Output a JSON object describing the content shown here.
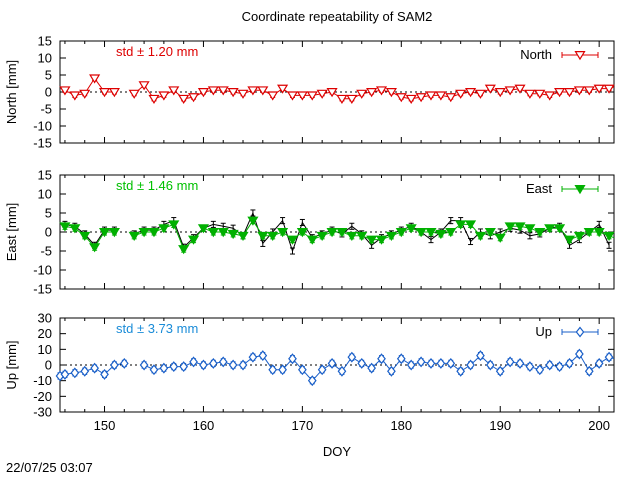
{
  "chart_data": {
    "type": "line",
    "title": "Coordinate repeatability of SAM2",
    "xlabel": "DOY",
    "xlim": [
      145.5,
      201.5
    ],
    "xticks": [
      150,
      160,
      170,
      180,
      190,
      200
    ],
    "timestamp": "22/07/25 03:07",
    "panels": [
      {
        "key": "north",
        "ylabel": "North [mm]",
        "ylim": [
          -15,
          15
        ],
        "yticks": [
          -15,
          -10,
          -5,
          0,
          5,
          10,
          15
        ],
        "std_label": "std ± 1.20 mm",
        "std_color": "#dd0000",
        "legend": "North",
        "color": "#dd0000",
        "marker": "triangle-down-open",
        "errbar": 0.6,
        "x": [
          146,
          147,
          148,
          149,
          150,
          151,
          152,
          153,
          154,
          155,
          156,
          157,
          158,
          159,
          160,
          161,
          162,
          163,
          164,
          165,
          166,
          167,
          168,
          169,
          170,
          171,
          172,
          173,
          174,
          175,
          176,
          177,
          178,
          179,
          180,
          181,
          182,
          183,
          184,
          185,
          186,
          187,
          188,
          189,
          190,
          191,
          192,
          193,
          194,
          195,
          196,
          197,
          198,
          199,
          200,
          201,
          202
        ],
        "y": [
          0.5,
          -1,
          -0.5,
          4,
          0,
          0,
          null,
          -0.5,
          2,
          -2,
          -1,
          0.5,
          -2,
          -1.5,
          0,
          0.5,
          0.5,
          0,
          -0.5,
          0.5,
          0.5,
          -1,
          1,
          -1,
          -1,
          -1,
          -0.5,
          0,
          -2,
          -2,
          -0.5,
          0,
          0.5,
          0,
          -1.5,
          -2,
          -1.5,
          -1,
          -1,
          -1.5,
          -0.5,
          0,
          -0.5,
          1,
          0,
          0.5,
          1,
          -0.5,
          -0.5,
          -1,
          0,
          0,
          0.5,
          0.5,
          1,
          1,
          1.5
        ],
        "y2": null
      },
      {
        "key": "east",
        "ylabel": "East [mm]",
        "ylim": [
          -15,
          15
        ],
        "yticks": [
          -15,
          -10,
          -5,
          0,
          5,
          10,
          15
        ],
        "std_label": "std ± 1.46 mm",
        "std_color": "#00c000",
        "legend": "East",
        "color": "#00b000",
        "marker": "triangle-down-filled",
        "errbar": 0.8,
        "x": [
          146,
          147,
          148,
          149,
          150,
          151,
          152,
          153,
          154,
          155,
          156,
          157,
          158,
          159,
          160,
          161,
          162,
          163,
          164,
          165,
          166,
          167,
          168,
          169,
          170,
          171,
          172,
          173,
          174,
          175,
          176,
          177,
          178,
          179,
          180,
          181,
          182,
          183,
          184,
          185,
          186,
          187,
          188,
          189,
          190,
          191,
          192,
          193,
          194,
          195,
          196,
          197,
          198,
          199,
          200,
          201,
          202
        ],
        "y": [
          1.5,
          1,
          -1,
          -4,
          0,
          0,
          null,
          -1,
          0,
          0,
          1,
          2,
          -4.5,
          -2,
          1,
          0,
          0,
          -0.5,
          -1,
          3,
          -1,
          -1,
          0,
          -2,
          0,
          -2,
          -1,
          0,
          0,
          -1,
          -1,
          -2,
          -2,
          -1,
          0,
          1,
          0,
          0,
          -0.5,
          0,
          2,
          2,
          -1,
          0,
          -1.5,
          1.5,
          1.5,
          1,
          0,
          1,
          1,
          -2,
          -1,
          0,
          0,
          -1,
          -1.5
        ],
        "y2": [
          2,
          1.5,
          -0.5,
          -3.5,
          0.5,
          0.5,
          null,
          -0.5,
          0.5,
          0.5,
          2,
          3,
          -4,
          -1.5,
          1,
          2,
          1.5,
          1,
          -1,
          5,
          -3,
          0,
          3,
          -5,
          2.5,
          -1.5,
          -0.5,
          0.5,
          -0.5,
          1.5,
          -0.5,
          -3.5,
          -1.5,
          -0.5,
          0.5,
          1.5,
          0,
          -2,
          0,
          3,
          3,
          -2.5,
          0,
          -1,
          0,
          1,
          0.5,
          -1,
          -0.5,
          1,
          1.5,
          -3.5,
          -2,
          0,
          2,
          -3.5,
          -3
        ]
      },
      {
        "key": "up",
        "ylabel": "Up [mm]",
        "ylim": [
          -30,
          30
        ],
        "yticks": [
          -30,
          -20,
          -10,
          0,
          10,
          20,
          30
        ],
        "std_label": "std ± 3.73 mm",
        "std_color": "#1a8cd8",
        "legend": "Up",
        "color": "#1a5fc8",
        "marker": "diamond-open",
        "errbar": 2,
        "x": [
          145.5,
          146,
          147,
          148,
          149,
          150,
          151,
          152,
          153,
          154,
          155,
          156,
          157,
          158,
          159,
          160,
          161,
          162,
          163,
          164,
          165,
          166,
          167,
          168,
          169,
          170,
          171,
          172,
          173,
          174,
          175,
          176,
          177,
          178,
          179,
          180,
          181,
          182,
          183,
          184,
          185,
          186,
          187,
          188,
          189,
          190,
          191,
          192,
          193,
          194,
          195,
          196,
          197,
          198,
          199,
          200,
          201,
          202
        ],
        "y": [
          -7,
          -6,
          -5,
          -4,
          -2,
          -6,
          0,
          1,
          null,
          0,
          -3,
          -2,
          -1,
          -1,
          2,
          0,
          1,
          2,
          0,
          0,
          5,
          6,
          -3,
          -3,
          4,
          -3,
          -10,
          -3,
          1,
          -4,
          5,
          1,
          -2,
          4,
          -4,
          4,
          0,
          2,
          1,
          1,
          1,
          -4,
          0,
          6,
          0,
          -4,
          2,
          1,
          -1,
          -3,
          0,
          -1,
          1,
          7,
          -4,
          1,
          5,
          4
        ],
        "y2": null
      }
    ]
  }
}
